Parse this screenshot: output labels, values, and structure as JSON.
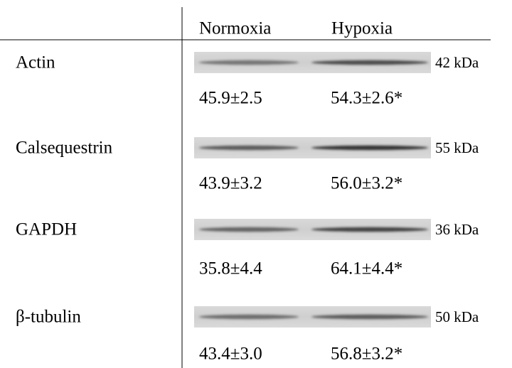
{
  "header": {
    "columns": [
      "Normoxia",
      "Hypoxia"
    ]
  },
  "rows": [
    {
      "protein": "Actin",
      "kda": "42 kDa",
      "normoxia": "45.9±2.5",
      "hypoxia": "54.3±2.6*"
    },
    {
      "protein": "Calsequestrin",
      "kda": "55 kDa",
      "normoxia": "43.9±3.2",
      "hypoxia": "56.0±3.2*"
    },
    {
      "protein": "GAPDH",
      "kda": "36 kDa",
      "normoxia": "35.8±4.4",
      "hypoxia": "64.1±4.4*"
    },
    {
      "protein": "β-tubulin",
      "kda": "50 kDa",
      "normoxia": "43.4±3.0",
      "hypoxia": "56.8±3.2*"
    }
  ]
}
